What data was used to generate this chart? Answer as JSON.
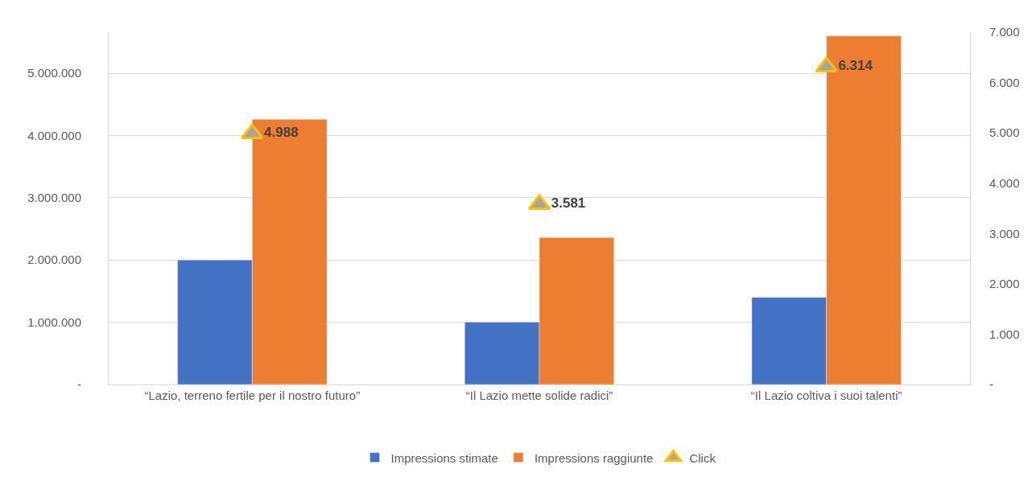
{
  "chart_data": {
    "type": "bar",
    "categories": [
      "“Lazio, terreno fertile per il nostro futuro”",
      "“Il Lazio mette solide radici”",
      "“Il Lazio coltiva i suoi talenti”"
    ],
    "series": [
      {
        "name": "Impressions stimate",
        "color": "#4472c4",
        "values": [
          2000000,
          1000000,
          1400000
        ]
      },
      {
        "name": "Impressions raggiunte",
        "color": "#ed7d31",
        "values": [
          4260000,
          2360000,
          5600000
        ]
      },
      {
        "name": "Click",
        "type": "scatter",
        "axis": "y2",
        "color": "#a5a5a5",
        "marker": "triangle",
        "values": [
          4988,
          3581,
          6314
        ],
        "value_labels": [
          "4.988",
          "3.581",
          "6.314"
        ]
      }
    ],
    "ylim": [
      0,
      5660000
    ],
    "yticks": [
      {
        "value": 0,
        "label": "-"
      },
      {
        "value": 1000000,
        "label": "1.000.000"
      },
      {
        "value": 2000000,
        "label": "2.000.000"
      },
      {
        "value": 3000000,
        "label": "3.000.000"
      },
      {
        "value": 4000000,
        "label": "4.000.000"
      },
      {
        "value": 5000000,
        "label": "5.000.000"
      }
    ],
    "y2lim": [
      0,
      7000
    ],
    "y2ticks": [
      {
        "value": 0,
        "label": "-"
      },
      {
        "value": 1000,
        "label": "1.000"
      },
      {
        "value": 2000,
        "label": "2.000"
      },
      {
        "value": 3000,
        "label": "3.000"
      },
      {
        "value": 4000,
        "label": "4.000"
      },
      {
        "value": 5000,
        "label": "5.000"
      },
      {
        "value": 6000,
        "label": "6.000"
      },
      {
        "value": 7000,
        "label": "7.000"
      }
    ],
    "grid": "y",
    "legend": "bottom"
  }
}
